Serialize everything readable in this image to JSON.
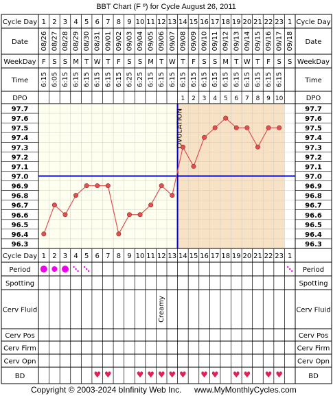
{
  "title": "BBT Chart (F º) for Cycle August 26, 2011",
  "copyright": "Copyright © 2003-2024 bInfinity Web Inc.",
  "website": "www.MyMonthlyCycles.com",
  "row_labels": {
    "cycle_day": "Cycle Day",
    "date": "Date",
    "weekday": "WeekDay",
    "time": "Time",
    "dpo": "DPO",
    "period": "Period",
    "spotting": "Spotting",
    "cerv_fluid": "Cerv Fluid",
    "cerv_pos": "Cerv Pos",
    "cerv_firm": "Cerv Firm",
    "cerv_opn": "Cerv Opn",
    "bd": "BD"
  },
  "columns": {
    "cycle_days": [
      "1",
      "2",
      "3",
      "4",
      "5",
      "6",
      "7",
      "8",
      "9",
      "10",
      "11",
      "12",
      "13",
      "14",
      "15",
      "16",
      "17",
      "18",
      "19",
      "20",
      "21",
      "22",
      "23",
      "1"
    ],
    "dates": [
      "08/26",
      "08/27",
      "08/28",
      "08/29",
      "08/30",
      "08/31",
      "09/01",
      "09/02",
      "09/03",
      "09/04",
      "09/05",
      "09/06",
      "09/07",
      "09/08",
      "09/09",
      "09/10",
      "09/11",
      "09/12",
      "09/13",
      "09/14",
      "09/15",
      "09/16",
      "09/17",
      "09/18"
    ],
    "weekdays": [
      "F",
      "S",
      "S",
      "M",
      "T",
      "W",
      "T",
      "F",
      "S",
      "S",
      "M",
      "T",
      "W",
      "T",
      "F",
      "S",
      "S",
      "M",
      "T",
      "W",
      "T",
      "F",
      "S",
      "S"
    ],
    "times": [
      "6:15",
      "6:05",
      "6:15",
      "6:15",
      "6:15",
      "6:15",
      "6:15",
      "6:15",
      "6:25",
      "6:25",
      "6:15",
      "6:15",
      "6:15",
      "6:15",
      "6:15",
      "6:15",
      "6:15",
      "6:15",
      "6:15",
      "6:15",
      "6:15",
      "6:15",
      "6:15",
      ""
    ],
    "dpo": [
      "",
      "",
      "",
      "",
      "",
      "",
      "",
      "",
      "",
      "",
      "",
      "",
      "",
      "1",
      "2",
      "3",
      "4",
      "5",
      "6",
      "7",
      "8",
      "9",
      "10",
      ""
    ]
  },
  "period": [
    "heavy",
    "medium",
    "heavy",
    "spot",
    "spot",
    "",
    "",
    "",
    "",
    "",
    "",
    "",
    "",
    "",
    "",
    "",
    "",
    "",
    "",
    "",
    "",
    "",
    "",
    "spot"
  ],
  "cerv_fluid": [
    "",
    "",
    "",
    "",
    "",
    "",
    "",
    "",
    "",
    "",
    "",
    "Creamy",
    "",
    "",
    "",
    "",
    "",
    "",
    "",
    "",
    "",
    "",
    "",
    ""
  ],
  "bd": [
    false,
    false,
    false,
    false,
    false,
    true,
    true,
    false,
    false,
    true,
    true,
    true,
    true,
    true,
    false,
    true,
    true,
    false,
    true,
    true,
    false,
    true,
    true,
    false
  ],
  "colors": {
    "temp_line": "#e05050",
    "coverline": "#0000cc",
    "ovulation_line": "#0000cc",
    "pre_ovulation_bg": "#fffff0",
    "post_ovulation_bg": "#f8e2c6",
    "period_dot": "#ee00ee",
    "bd_heart": "#dd2255",
    "grid": "#000000",
    "grid_minor": "#c8c8c8"
  },
  "chart_data": {
    "type": "line",
    "x": [
      "1",
      "2",
      "3",
      "4",
      "5",
      "6",
      "7",
      "8",
      "9",
      "10",
      "11",
      "12",
      "13",
      "14",
      "15",
      "16",
      "17",
      "18",
      "19",
      "20",
      "21",
      "22",
      "23"
    ],
    "series": [
      {
        "values": [
          96.4,
          96.7,
          96.6,
          96.8,
          96.9,
          96.9,
          96.9,
          96.4,
          96.6,
          96.6,
          96.7,
          96.9,
          96.8,
          97.3,
          97.1,
          97.4,
          97.5,
          97.6,
          97.5,
          97.5,
          97.3,
          97.5,
          97.5
        ]
      }
    ],
    "y_ticks": [
      "97.7",
      "97.6",
      "97.5",
      "97.4",
      "97.3",
      "97.2",
      "97.1",
      "97.0",
      "96.9",
      "96.8",
      "96.7",
      "96.6",
      "96.5",
      "96.4",
      "96.3"
    ],
    "ylim": [
      96.3,
      97.7
    ],
    "coverline": 97.0,
    "ovulation_day": 14,
    "ovulation_label": "OVULATION",
    "grid": true
  }
}
